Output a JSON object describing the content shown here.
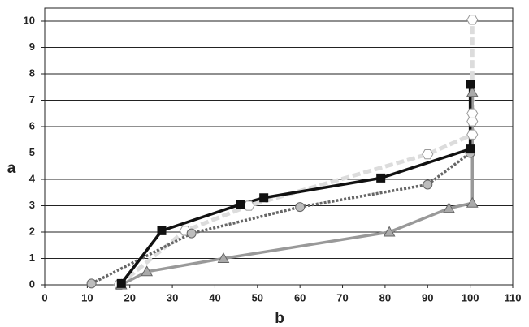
{
  "chart_data": {
    "type": "line",
    "x_label": "b",
    "y_label": "a",
    "xlim": [
      0,
      110
    ],
    "xticks": [
      0,
      10,
      20,
      30,
      40,
      50,
      60,
      70,
      80,
      90,
      100,
      110
    ],
    "ylim": [
      0,
      10
    ],
    "yticks": [
      0,
      1,
      2,
      3,
      4,
      5,
      6,
      7,
      8,
      9,
      10
    ],
    "grid": true,
    "series": [
      {
        "color": "#dcdcdc",
        "marker": "hexagon",
        "dash": "dashed",
        "x": [
          17.5,
          33,
          48,
          90,
          100.5,
          100.5,
          100.5,
          100.5
        ],
        "values": [
          0,
          2.05,
          3,
          4.95,
          5.7,
          6.2,
          6.5,
          10.05
        ]
      },
      {
        "color": "#666666",
        "marker": "circle",
        "dash": "dotted",
        "x": [
          11,
          34.5,
          60,
          90,
          100
        ],
        "values": [
          0.05,
          1.95,
          2.95,
          3.8,
          5.0
        ]
      },
      {
        "color": "#999999",
        "marker": "triangle",
        "dash": "solid",
        "x": [
          18,
          24,
          42,
          81,
          95,
          100.5,
          100.5
        ],
        "values": [
          0,
          0.5,
          1.0,
          2.0,
          2.9,
          3.1,
          7.3
        ]
      },
      {
        "color": "#111111",
        "marker": "square",
        "dash": "solid",
        "x": [
          18,
          27.5,
          46,
          51.5,
          79,
          100,
          100
        ],
        "values": [
          0.05,
          2.05,
          3.05,
          3.3,
          4.05,
          5.15,
          7.6
        ]
      }
    ]
  }
}
